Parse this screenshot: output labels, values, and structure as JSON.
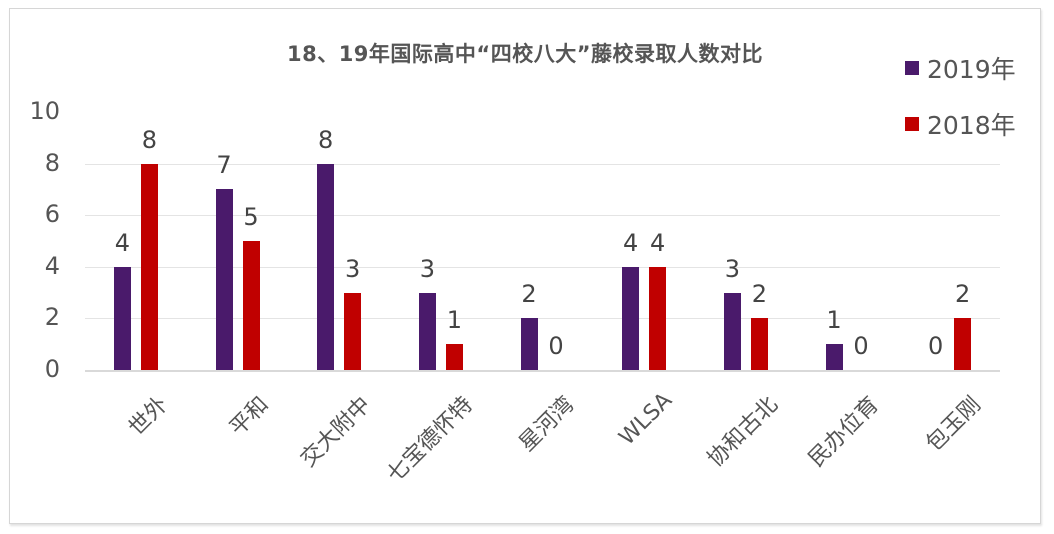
{
  "chart_data": {
    "type": "bar",
    "title": "18、19年国际高中“四校八大”藤校录取人数对比",
    "xlabel": "",
    "ylabel": "",
    "ylim": [
      0,
      10
    ],
    "yticks": [
      0,
      2,
      4,
      6,
      8,
      10
    ],
    "grid": true,
    "legend_position": "top-right",
    "categories": [
      "世外",
      "平和",
      "交大附中",
      "七宝德怀特",
      "星河湾",
      "WLSA",
      "协和古北",
      "民办位育",
      "包玉刚"
    ],
    "series": [
      {
        "name": "2019年",
        "color": "#4a1a6b",
        "values": [
          4,
          7,
          8,
          3,
          2,
          4,
          3,
          1,
          0
        ]
      },
      {
        "name": "2018年",
        "color": "#c00000",
        "values": [
          8,
          5,
          3,
          1,
          0,
          4,
          2,
          0,
          2
        ]
      }
    ]
  }
}
